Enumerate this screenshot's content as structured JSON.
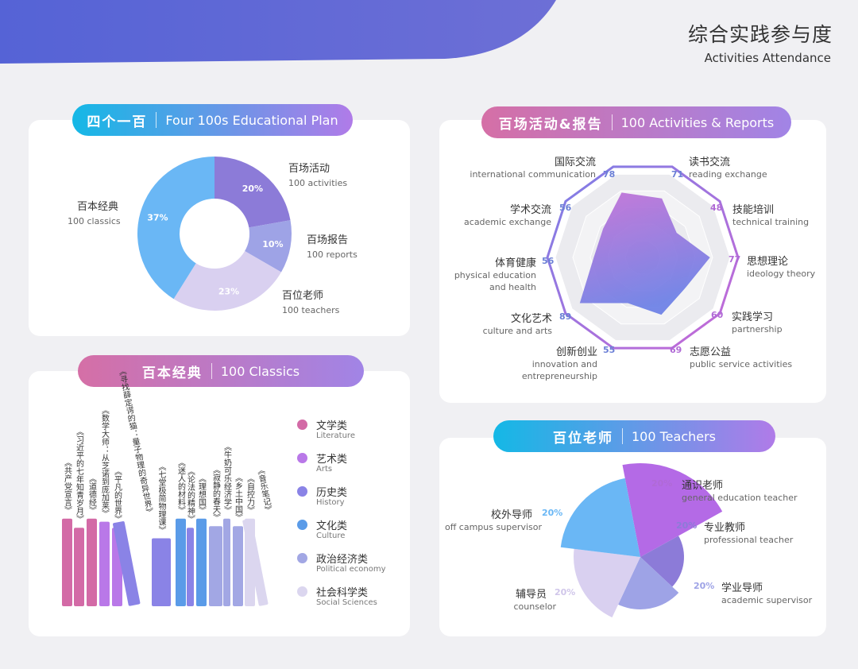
{
  "header": {
    "title_cn": "综合实践参与度",
    "title_en": "Activities Attendance"
  },
  "colors": {
    "purple": "#8c7bd8",
    "lavender": "#9ea3e6",
    "light": "#d9d0f0",
    "blue": "#6ab7f5",
    "accent_cyan": "#19b7e8",
    "accent_pink": "#d56fa6"
  },
  "sections": {
    "plan": {
      "cn": "四个一百",
      "en": "Four 100s Educational Plan"
    },
    "activities": {
      "cn": "百场活动&报告",
      "en": "100 Activities & Reports"
    },
    "classics": {
      "cn": "百本经典",
      "en": "100 Classics"
    },
    "teachers": {
      "cn": "百位老师",
      "en": "100 Teachers"
    }
  },
  "chart_data": [
    {
      "type": "pie",
      "slices": [
        {
          "cn": "百场活动",
          "en": "100 activities",
          "value": 20,
          "label": "20%",
          "color": "#8c7bd8"
        },
        {
          "cn": "百场报告",
          "en": "100 reports",
          "value": 10,
          "label": "10%",
          "color": "#9ea3e6"
        },
        {
          "cn": "百位老师",
          "en": "100 teachers",
          "value": 23,
          "label": "23%",
          "color": "#d9d0f0"
        },
        {
          "cn": "百本经典",
          "en": "100 classics",
          "value": 37,
          "label": "37%",
          "color": "#6ab7f5"
        }
      ]
    },
    {
      "type": "radar",
      "rmax": 100,
      "axes": [
        {
          "cn": "读书交流",
          "en": [
            "reading exchange"
          ],
          "value": 71
        },
        {
          "cn": "技能培训",
          "en": [
            "technical training"
          ],
          "value": 48
        },
        {
          "cn": "思想理论",
          "en": [
            "ideology theory"
          ],
          "value": 77
        },
        {
          "cn": "实践学习",
          "en": [
            "partnership"
          ],
          "value": 60
        },
        {
          "cn": "志愿公益",
          "en": [
            "public service activities"
          ],
          "value": 69
        },
        {
          "cn": "创新创业",
          "en": [
            "innovation and",
            "entrepreneurship"
          ],
          "value": 55
        },
        {
          "cn": "文化艺术",
          "en": [
            "culture and arts"
          ],
          "value": 89
        },
        {
          "cn": "体育健康",
          "en": [
            "physical education",
            "and health"
          ],
          "value": 56
        },
        {
          "cn": "学术交流",
          "en": [
            "academic exchange"
          ],
          "value": 56
        },
        {
          "cn": "国际交流",
          "en": [
            "international communication"
          ],
          "value": 78
        }
      ]
    },
    {
      "type": "bar",
      "books": [
        {
          "title": "《共产党宣言》",
          "height": 0.58,
          "cat": 0
        },
        {
          "title": "《习近平的七年知青岁月》",
          "height": 0.52,
          "cat": 0
        },
        {
          "title": "《道德经》",
          "height": 0.58,
          "cat": 0
        },
        {
          "title": "《数学大师：从芝诺到庞加莱》",
          "height": 0.56,
          "cat": 1
        },
        {
          "title": "《平凡的世界》",
          "height": 0.52,
          "cat": 1
        },
        {
          "title": "《寻找薛定谔的猫：量子物理的奇异世界》",
          "height": 0.56,
          "cat": 2,
          "lean": true
        },
        {
          "title": "《七堂极简物理课》",
          "height": 0.45,
          "cat": 2
        },
        {
          "title": "《迷人的材料》",
          "height": 0.58,
          "cat": 3
        },
        {
          "title": "《论法的精神》",
          "height": 0.52,
          "cat": 2
        },
        {
          "title": "《理想国》",
          "height": 0.58,
          "cat": 3
        },
        {
          "title": "《寂静的春天》",
          "height": 0.53,
          "cat": 4
        },
        {
          "title": "《牛奶可乐经济学》",
          "height": 0.58,
          "cat": 4
        },
        {
          "title": "《乡土中国》",
          "height": 0.53,
          "cat": 4
        },
        {
          "title": "《自控力》",
          "height": 0.58,
          "cat": 5
        },
        {
          "title": "《音乐笔记》",
          "height": 0.58,
          "cat": 5,
          "lean": true
        }
      ],
      "legend": [
        {
          "cn": "文学类",
          "en": "Literature",
          "color": "#d36aa6"
        },
        {
          "cn": "艺术类",
          "en": "Arts",
          "color": "#b978e8"
        },
        {
          "cn": "历史类",
          "en": "History",
          "color": "#8a83e6"
        },
        {
          "cn": "文化类",
          "en": "Culture",
          "color": "#5a9be8"
        },
        {
          "cn": "政治经济类",
          "en": "Political economy",
          "color": "#a2a7e4"
        },
        {
          "cn": "社会科学类",
          "en": "Social Sciences",
          "color": "#dbd6ef"
        }
      ]
    },
    {
      "type": "pie",
      "variant": "rose",
      "slices": [
        {
          "cn": "通识老师",
          "en": "general education teacher",
          "label": "20%",
          "color": "#b46ae6"
        },
        {
          "cn": "专业教师",
          "en": "professional teacher",
          "label": "20%",
          "color": "#8c7bd8"
        },
        {
          "cn": "学业导师",
          "en": "academic supervisor",
          "label": "20%",
          "color": "#9ea3e6"
        },
        {
          "cn": "辅导员",
          "en": "counselor",
          "label": "20%",
          "color": "#d9d0f0"
        },
        {
          "cn": "校外导师",
          "en": "off campus supervisor",
          "label": "20%",
          "color": "#6ab7f5"
        }
      ]
    }
  ]
}
